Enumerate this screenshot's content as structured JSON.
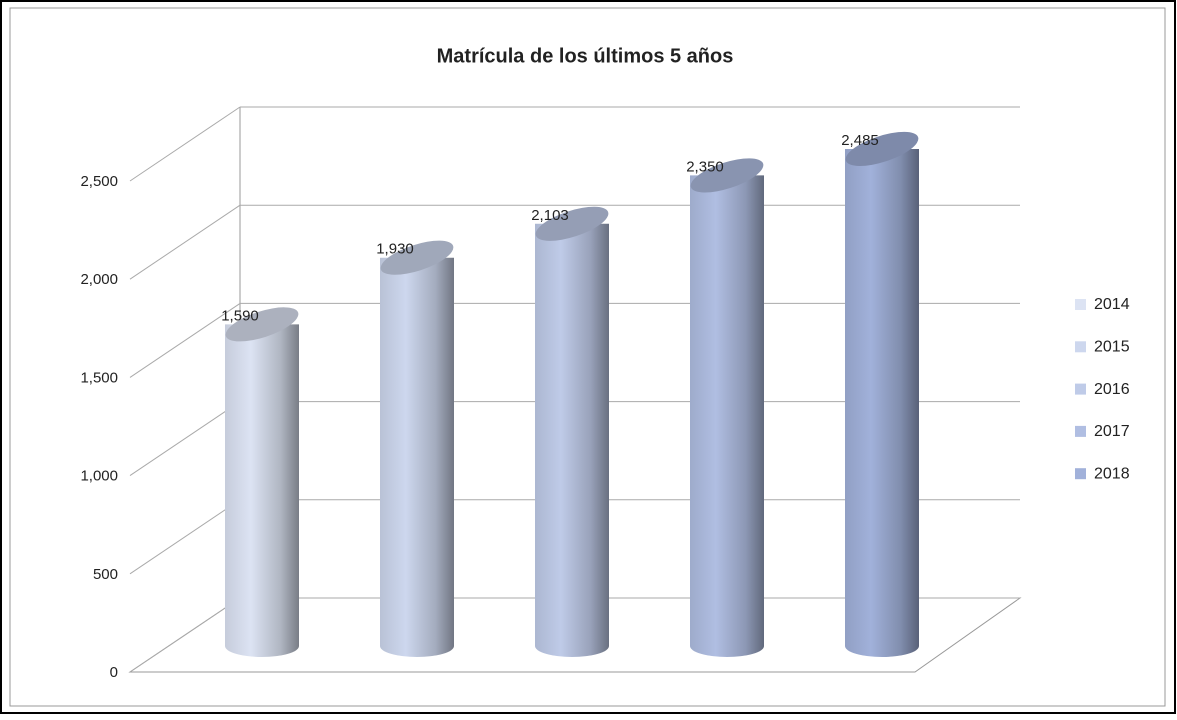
{
  "chart_data": {
    "type": "bar3d",
    "title": "Matrícula de los últimos 5 años",
    "series": [
      {
        "name": "2014",
        "color": "#dce3f3",
        "values": [
          1590
        ],
        "value_labels": [
          "1,590"
        ]
      },
      {
        "name": "2015",
        "color": "#cdd7ee",
        "values": [
          1930
        ],
        "value_labels": [
          "1,930"
        ]
      },
      {
        "name": "2016",
        "color": "#bfcbe8",
        "values": [
          2103
        ],
        "value_labels": [
          "2,103"
        ]
      },
      {
        "name": "2017",
        "color": "#b0bee2",
        "values": [
          2350
        ],
        "value_labels": [
          "2,350"
        ]
      },
      {
        "name": "2018",
        "color": "#a1b1da",
        "values": [
          2485
        ],
        "value_labels": [
          "2,485"
        ]
      }
    ],
    "ylim": [
      0,
      2500
    ],
    "yticks": [
      0,
      500,
      {
        "value": 1000,
        "label": "1,000"
      },
      {
        "value": 1500,
        "label": "1,500"
      },
      {
        "value": 2000,
        "label": "2,000"
      },
      {
        "value": 2500,
        "label": "2,500"
      }
    ],
    "grid": true,
    "legend": "right"
  }
}
